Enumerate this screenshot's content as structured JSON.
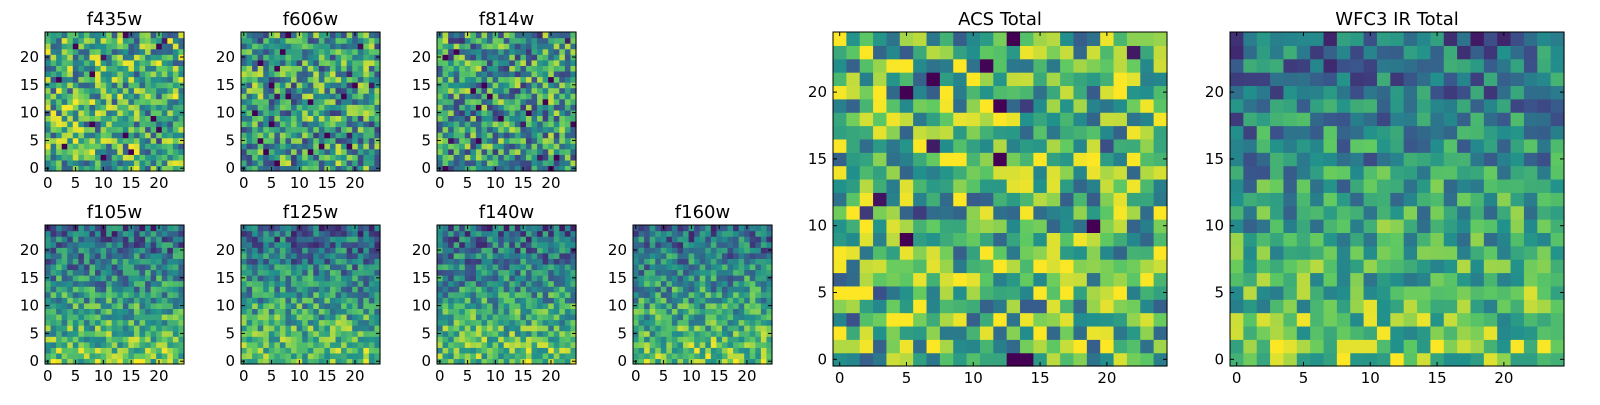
{
  "chart_data": [
    {
      "type": "heatmap",
      "title": "f435w",
      "xticks": [
        "0",
        "5",
        "10",
        "15",
        "20"
      ],
      "yticks": [
        "0",
        "5",
        "10",
        "15",
        "20"
      ],
      "size": 25,
      "pattern": "noise",
      "seed": 11,
      "bias": 0.62,
      "grid": false
    },
    {
      "type": "heatmap",
      "title": "f606w",
      "xticks": [
        "0",
        "5",
        "10",
        "15",
        "20"
      ],
      "yticks": [
        "0",
        "5",
        "10",
        "15",
        "20"
      ],
      "size": 25,
      "pattern": "noise",
      "seed": 23,
      "bias": 0.56,
      "grid": false
    },
    {
      "type": "heatmap",
      "title": "f814w",
      "xticks": [
        "0",
        "5",
        "10",
        "15",
        "20"
      ],
      "yticks": [
        "0",
        "5",
        "10",
        "15",
        "20"
      ],
      "size": 25,
      "pattern": "noise",
      "seed": 37,
      "bias": 0.54,
      "grid": false
    },
    {
      "type": "heatmap",
      "title": "f105w",
      "xticks": [
        "0",
        "5",
        "10",
        "15",
        "20"
      ],
      "yticks": [
        "0",
        "5",
        "10",
        "15",
        "20"
      ],
      "size": 25,
      "pattern": "gradient",
      "seed": 41,
      "bias": 0.55,
      "grid": false
    },
    {
      "type": "heatmap",
      "title": "f125w",
      "xticks": [
        "0",
        "5",
        "10",
        "15",
        "20"
      ],
      "yticks": [
        "0",
        "5",
        "10",
        "15",
        "20"
      ],
      "size": 25,
      "pattern": "gradient",
      "seed": 53,
      "bias": 0.55,
      "grid": false
    },
    {
      "type": "heatmap",
      "title": "f140w",
      "xticks": [
        "0",
        "5",
        "10",
        "15",
        "20"
      ],
      "yticks": [
        "0",
        "5",
        "10",
        "15",
        "20"
      ],
      "size": 25,
      "pattern": "gradient",
      "seed": 67,
      "bias": 0.56,
      "grid": false
    },
    {
      "type": "heatmap",
      "title": "f160w",
      "xticks": [
        "0",
        "5",
        "10",
        "15",
        "20"
      ],
      "yticks": [
        "0",
        "5",
        "10",
        "15",
        "20"
      ],
      "size": 25,
      "pattern": "gradient",
      "seed": 79,
      "bias": 0.58,
      "grid": false
    },
    {
      "type": "heatmap",
      "title": "ACS Total",
      "xticks": [
        "0",
        "5",
        "10",
        "15",
        "20"
      ],
      "yticks": [
        "0",
        "5",
        "10",
        "15",
        "20"
      ],
      "size": 25,
      "pattern": "noise",
      "seed": 97,
      "bias": 0.66,
      "grid": false
    },
    {
      "type": "heatmap",
      "title": "WFC3 IR Total",
      "xticks": [
        "0",
        "5",
        "10",
        "15",
        "20"
      ],
      "yticks": [
        "0",
        "5",
        "10",
        "15",
        "20"
      ],
      "size": 25,
      "pattern": "gradient",
      "seed": 113,
      "bias": 0.6,
      "grid": false
    }
  ],
  "colormap": [
    "#440154",
    "#3b528b",
    "#21918c",
    "#5ec962",
    "#fde725"
  ]
}
